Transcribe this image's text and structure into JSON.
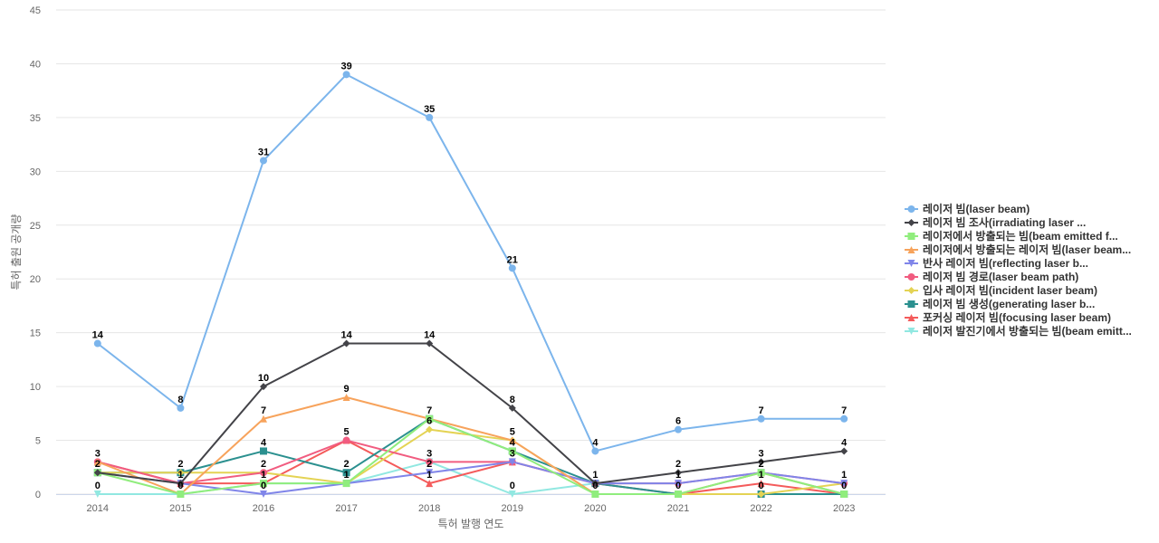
{
  "chart_data": {
    "type": "line",
    "title": "",
    "xlabel": "특허 발행 연도",
    "ylabel": "특허 출원 공개량",
    "ylim": [
      0,
      45
    ],
    "yticks": [
      0,
      5,
      10,
      15,
      20,
      25,
      30,
      35,
      40,
      45
    ],
    "grid": true,
    "legend_position": "right",
    "categories": [
      "2014",
      "2015",
      "2016",
      "2017",
      "2018",
      "2019",
      "2020",
      "2021",
      "2022",
      "2023"
    ],
    "series": [
      {
        "name": "레이저 빔(laser beam)",
        "color": "#7cb5ec",
        "marker": "circle",
        "values": [
          14,
          8,
          31,
          39,
          35,
          21,
          4,
          6,
          7,
          7
        ],
        "labeled": true
      },
      {
        "name": "레이저 빔 조사(irradiating laser ...",
        "color": "#434348",
        "marker": "diamond",
        "values": [
          2,
          1,
          10,
          14,
          14,
          8,
          1,
          2,
          3,
          4
        ],
        "labeled": true
      },
      {
        "name": "레이저에서 방출되는 빔(beam emitted f...",
        "color": "#90ed7d",
        "marker": "square",
        "values": [
          2,
          0,
          1,
          1,
          7,
          4,
          0,
          0,
          2,
          0
        ],
        "labeled": false
      },
      {
        "name": "레이저에서 방출되는 레이저 빔(laser beam...",
        "color": "#f7a35c",
        "marker": "triangle",
        "values": [
          3,
          0,
          7,
          9,
          7,
          5,
          0,
          0,
          2,
          0
        ],
        "labeled": false
      },
      {
        "name": "반사 레이저 빔(reflecting laser b...",
        "color": "#8085e9",
        "marker": "triangle-down",
        "values": [
          2,
          1,
          0,
          1,
          2,
          3,
          1,
          1,
          2,
          1
        ],
        "labeled": false
      },
      {
        "name": "레이저 빔 경로(laser beam path)",
        "color": "#f15c80",
        "marker": "circle",
        "values": [
          3,
          1,
          2,
          5,
          3,
          3,
          1,
          1,
          2,
          1
        ],
        "labeled": false
      },
      {
        "name": "입사 레이저 빔(incident laser beam)",
        "color": "#e4d354",
        "marker": "diamond",
        "values": [
          2,
          2,
          2,
          1,
          6,
          5,
          0,
          0,
          0,
          1
        ],
        "labeled": false
      },
      {
        "name": "레이저 빔 생성(generating laser b...",
        "color": "#2b908f",
        "marker": "square",
        "values": [
          2,
          2,
          4,
          2,
          7,
          4,
          1,
          0,
          0,
          0
        ],
        "labeled": false
      },
      {
        "name": "포커싱 레이저 빔(focusing laser beam)",
        "color": "#f45b5b",
        "marker": "triangle",
        "values": [
          3,
          1,
          1,
          5,
          1,
          3,
          1,
          0,
          1,
          0
        ],
        "labeled": false
      },
      {
        "name": "레이저 발진기에서 방출되는 빔(beam emitt...",
        "color": "#91e8e1",
        "marker": "triangle-down",
        "values": [
          0,
          0,
          1,
          1,
          3,
          0,
          1,
          0,
          2,
          0
        ],
        "labeled": false
      }
    ],
    "data_labels": [
      {
        "category": "2014",
        "values": [
          14,
          3,
          2,
          0
        ]
      },
      {
        "category": "2015",
        "values": [
          8,
          2,
          1,
          0
        ]
      },
      {
        "category": "2016",
        "values": [
          31,
          10,
          7,
          4,
          2,
          1,
          0
        ]
      },
      {
        "category": "2017",
        "values": [
          39,
          14,
          9,
          5,
          2,
          1
        ]
      },
      {
        "category": "2018",
        "values": [
          35,
          14,
          7,
          6,
          3,
          2,
          1
        ]
      },
      {
        "category": "2019",
        "values": [
          21,
          8,
          5,
          4,
          3,
          0
        ]
      },
      {
        "category": "2020",
        "values": [
          4,
          1,
          0
        ]
      },
      {
        "category": "2021",
        "values": [
          6,
          2,
          1,
          0
        ]
      },
      {
        "category": "2022",
        "values": [
          7,
          3,
          2,
          1,
          0
        ]
      },
      {
        "category": "2023",
        "values": [
          7,
          4,
          1,
          0
        ]
      }
    ]
  }
}
